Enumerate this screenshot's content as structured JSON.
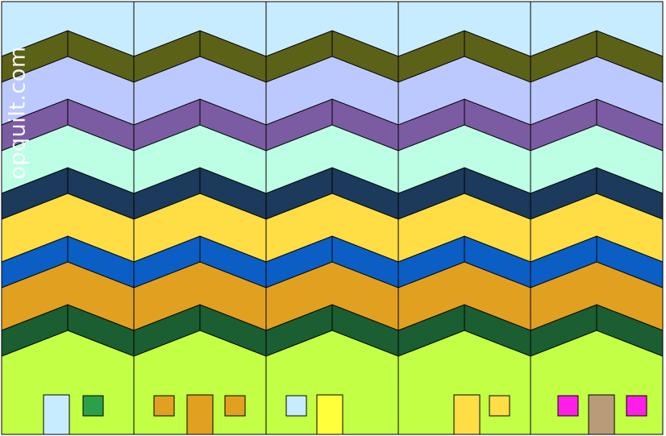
{
  "watermark": "opquilt.com",
  "colors": {
    "sky": "#c8ecff",
    "band_olive": "#5c6118",
    "band_periwinkle": "#bcc9ff",
    "band_purple": "#7b5ba1",
    "band_mint": "#bcffe4",
    "band_navy": "#1b3a5c",
    "band_yellow": "#ffdd45",
    "band_blue": "#0a5ec4",
    "band_orange": "#e1a020",
    "band_darkgreen": "#1a5e32",
    "ground": "#c2ff45",
    "outline": "#000000"
  },
  "bands": [
    "band_olive",
    "band_periwinkle",
    "band_purple",
    "band_mint",
    "band_navy",
    "band_yellow",
    "band_blue",
    "band_orange",
    "band_darkgreen"
  ],
  "columns": 5,
  "houses": [
    {
      "parts": [
        {
          "kind": "door",
          "color": "#c8ecff"
        },
        {
          "kind": "window",
          "color": "#2aa04a"
        }
      ]
    },
    {
      "parts": [
        {
          "kind": "window",
          "color": "#e1a020"
        },
        {
          "kind": "door",
          "color": "#e1a020"
        },
        {
          "kind": "window",
          "color": "#e1a020"
        }
      ]
    },
    {
      "parts": [
        {
          "kind": "window",
          "color": "#c8ecff"
        },
        {
          "kind": "door",
          "color": "#ffff3a"
        }
      ]
    },
    {
      "parts": [
        {
          "kind": "door",
          "color": "#ffdd45"
        },
        {
          "kind": "window",
          "color": "#ffdd45"
        }
      ]
    },
    {
      "parts": [
        {
          "kind": "window",
          "color": "#ff1ee8"
        },
        {
          "kind": "door",
          "color": "#b89c7a"
        },
        {
          "kind": "window",
          "color": "#ff1ee8"
        }
      ]
    }
  ]
}
